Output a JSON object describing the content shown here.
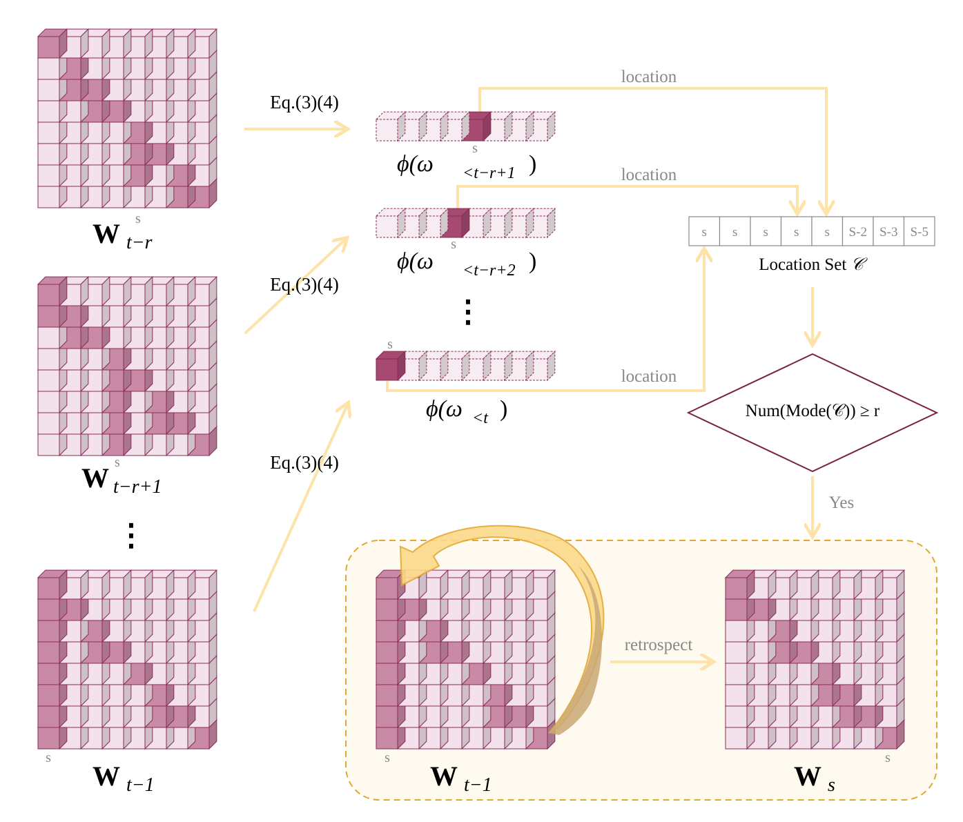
{
  "colors": {
    "cell_light": "#f3e2eb",
    "cell_dark": "#c98aa6",
    "cell_stroke": "#8a2a55",
    "vec_light": "#f7ecf1",
    "vec_dark": "#a64a72",
    "arrow": "#fde3a9",
    "diamond_stroke": "#7a1f45",
    "dashed_box_fill": "#fffaf0",
    "dashed_box_stroke": "#e3a730",
    "big_arrow_fill": "#fbd98a",
    "big_arrow_fill_dark": "#c9a874",
    "grey_text": "#888888"
  },
  "matrices": {
    "w_t_minus_r": {
      "label_main": "W",
      "label_sub": "t−r",
      "s_marker": "s",
      "dark_cells": [
        [
          0,
          0
        ],
        [
          1,
          1
        ],
        [
          2,
          1
        ],
        [
          2,
          2
        ],
        [
          3,
          2
        ],
        [
          3,
          3
        ],
        [
          4,
          4
        ],
        [
          5,
          4
        ],
        [
          5,
          5
        ],
        [
          6,
          4
        ],
        [
          6,
          6
        ],
        [
          7,
          6
        ],
        [
          7,
          7
        ]
      ]
    },
    "w_t_minus_r_plus_1": {
      "label_main": "W",
      "label_sub": "t−r+1",
      "s_marker": "s",
      "dark_cells": [
        [
          0,
          0
        ],
        [
          1,
          0
        ],
        [
          1,
          1
        ],
        [
          2,
          1
        ],
        [
          2,
          2
        ],
        [
          3,
          3
        ],
        [
          4,
          3
        ],
        [
          4,
          4
        ],
        [
          5,
          3
        ],
        [
          5,
          5
        ],
        [
          6,
          3
        ],
        [
          6,
          5
        ],
        [
          6,
          6
        ],
        [
          7,
          3
        ],
        [
          7,
          7
        ]
      ]
    },
    "w_t_minus_1_left": {
      "label_main": "W",
      "label_sub": "t−1",
      "s_marker": "s",
      "dark_cells": [
        [
          0,
          0
        ],
        [
          1,
          0
        ],
        [
          1,
          1
        ],
        [
          2,
          0
        ],
        [
          2,
          2
        ],
        [
          3,
          0
        ],
        [
          3,
          2
        ],
        [
          3,
          3
        ],
        [
          4,
          0
        ],
        [
          4,
          4
        ],
        [
          5,
          0
        ],
        [
          5,
          5
        ],
        [
          6,
          0
        ],
        [
          6,
          5
        ],
        [
          6,
          6
        ],
        [
          7,
          0
        ],
        [
          7,
          7
        ]
      ]
    },
    "w_t_minus_1_box": {
      "label_main": "W",
      "label_sub": "t−1",
      "s_marker": "s",
      "dark_cells": [
        [
          0,
          0
        ],
        [
          1,
          0
        ],
        [
          1,
          1
        ],
        [
          2,
          0
        ],
        [
          2,
          2
        ],
        [
          3,
          0
        ],
        [
          3,
          2
        ],
        [
          3,
          3
        ],
        [
          4,
          0
        ],
        [
          4,
          4
        ],
        [
          5,
          0
        ],
        [
          5,
          5
        ],
        [
          6,
          0
        ],
        [
          6,
          5
        ],
        [
          6,
          6
        ],
        [
          7,
          0
        ],
        [
          7,
          7
        ]
      ]
    },
    "w_s": {
      "label_main": "W",
      "label_sub": "s",
      "s_marker": "s",
      "dark_cells": [
        [
          0,
          0
        ],
        [
          1,
          0
        ],
        [
          1,
          1
        ],
        [
          2,
          2
        ],
        [
          3,
          2
        ],
        [
          3,
          3
        ],
        [
          4,
          4
        ],
        [
          5,
          4
        ],
        [
          5,
          5
        ],
        [
          6,
          5
        ],
        [
          6,
          6
        ],
        [
          7,
          7
        ]
      ]
    }
  },
  "vectors": [
    {
      "label": "ϕ(ω",
      "sub": "<t−r+1",
      "close": ")",
      "highlight": 4,
      "s_marker": "s"
    },
    {
      "label": "ϕ(ω",
      "sub": "<t−r+2",
      "close": ")",
      "highlight": 3,
      "s_marker": "s"
    },
    {
      "label": "ϕ(ω",
      "sub": "<t",
      "close": ")",
      "highlight": 0,
      "s_marker": "s"
    }
  ],
  "eq_labels": [
    "Eq.(3)(4)",
    "Eq.(3)(4)",
    "Eq.(3)(4)"
  ],
  "location_labels": [
    "location",
    "location",
    "location"
  ],
  "location_set": {
    "cells": [
      "s",
      "s",
      "s",
      "s",
      "s",
      "S-2",
      "S-3",
      "S-5"
    ],
    "caption": "Location Set",
    "caption_symbol": "𝒞"
  },
  "decision": {
    "text": "Num(Mode(𝒞)) ≥ r",
    "yes_label": "Yes"
  },
  "retrospect_label": "retrospect",
  "vertical_ellipsis": "⋮"
}
